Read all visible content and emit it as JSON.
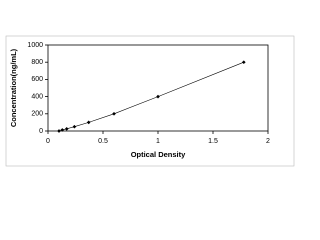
{
  "chart_data": {
    "type": "scatter",
    "x_label": "Optical Density",
    "y_label": "Concentration(ng/mL)",
    "x": [
      0.1,
      0.13,
      0.17,
      0.24,
      0.37,
      0.6,
      1.0,
      1.78
    ],
    "values": [
      0,
      12.5,
      25,
      50,
      100,
      200,
      400,
      800
    ],
    "color": "#000000",
    "xlim": [
      0,
      2
    ],
    "xticks": [
      0,
      0.5,
      1,
      1.5,
      2
    ],
    "ylim": [
      0,
      1000
    ],
    "yticks": [
      0,
      200,
      400,
      600,
      800,
      1000
    ]
  }
}
